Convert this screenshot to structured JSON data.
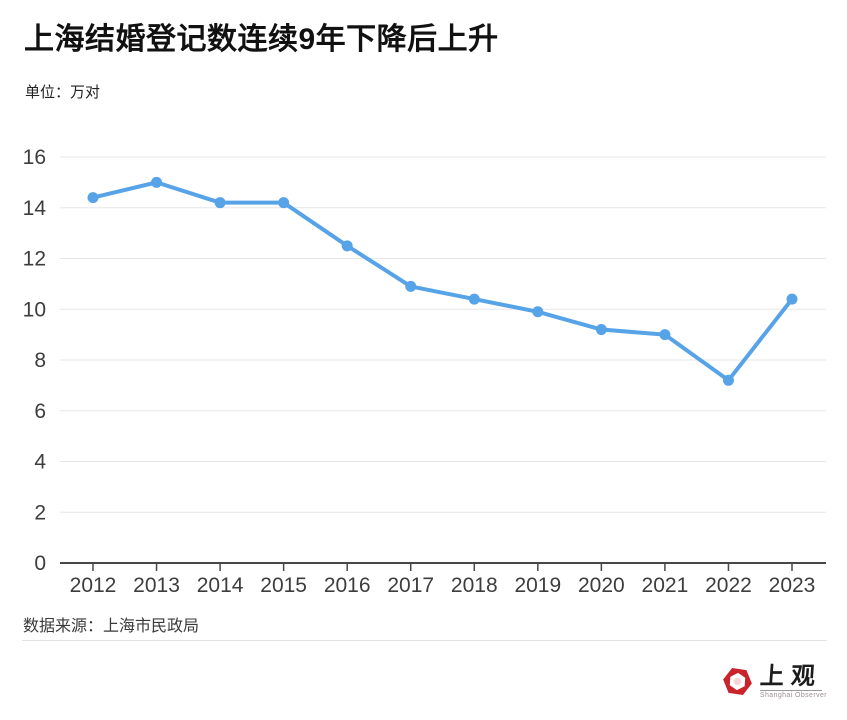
{
  "header": {
    "title": "上海结婚登记数连续9年下降后上升",
    "unit_label": "单位：万对"
  },
  "chart_data": {
    "type": "line",
    "title": "上海结婚登记数连续9年下降后上升",
    "unit": "万对",
    "categories": [
      "2012",
      "2013",
      "2014",
      "2015",
      "2016",
      "2017",
      "2018",
      "2019",
      "2020",
      "2021",
      "2022",
      "2023"
    ],
    "values": [
      14.4,
      15.0,
      14.2,
      14.2,
      12.5,
      10.9,
      10.4,
      9.9,
      9.2,
      9.0,
      7.2,
      10.4
    ],
    "xlabel": "",
    "ylabel": "单位：万对",
    "ylim": [
      0,
      16
    ],
    "yticks": [
      0,
      2,
      4,
      6,
      8,
      10,
      12,
      14,
      16
    ],
    "grid": true,
    "legend_position": "none",
    "line_color": "#57a3e8",
    "point_color": "#57a3e8",
    "grid_color": "#e7e7e7",
    "axis_color": "#474747",
    "tick_label_color": "#3d3d3d"
  },
  "footer": {
    "source": "数据来源：上海市民政局"
  },
  "logo": {
    "name_cn": "上观",
    "name_en": "Shanghai Observer",
    "brand_color": "#c9242b"
  }
}
